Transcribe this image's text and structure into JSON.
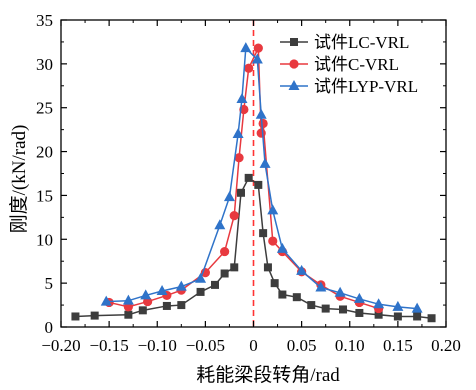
{
  "chart_data": {
    "type": "line",
    "title": "",
    "xlabel": "耗能梁段转角/rad",
    "ylabel": "刚度/(kN/rad)",
    "xlim": [
      -0.2,
      0.2
    ],
    "ylim": [
      0,
      35
    ],
    "xticks": [
      -0.2,
      -0.15,
      -0.1,
      -0.05,
      0,
      0.05,
      0.1,
      0.15,
      0.2
    ],
    "xtick_labels": [
      "−0.20",
      "−0.15",
      "−0.10",
      "−0.05",
      "0",
      "0.05",
      "0.10",
      "0.15",
      "0.20"
    ],
    "yticks": [
      0,
      5,
      10,
      15,
      20,
      25,
      30,
      35
    ],
    "ytick_labels": [
      "0",
      "5",
      "10",
      "15",
      "20",
      "25",
      "30",
      "35"
    ],
    "grid": false,
    "legend_position": "top-right",
    "reference_line": {
      "x": 0,
      "style": "dashed",
      "color": "#ff3333"
    },
    "series": [
      {
        "name": "试件LC-VRL",
        "color": "#3d3d3d",
        "marker": "square",
        "x": [
          -0.185,
          -0.165,
          -0.13,
          -0.115,
          -0.09,
          -0.075,
          -0.055,
          -0.04,
          -0.03,
          -0.02,
          -0.013,
          -0.005,
          0.005,
          0.01,
          0.015,
          0.022,
          0.03,
          0.045,
          0.06,
          0.075,
          0.093,
          0.11,
          0.13,
          0.15,
          0.17,
          0.185
        ],
        "y": [
          1.2,
          1.3,
          1.4,
          1.9,
          2.4,
          2.5,
          4.0,
          4.8,
          6.1,
          6.8,
          15.3,
          17.0,
          16.2,
          10.7,
          6.8,
          5.0,
          3.7,
          3.4,
          2.5,
          2.1,
          2.0,
          1.6,
          1.4,
          1.2,
          1.2,
          1.0
        ]
      },
      {
        "name": "试件C-VRL",
        "color": "#e8393f",
        "marker": "circle",
        "x": [
          -0.15,
          -0.13,
          -0.11,
          -0.09,
          -0.075,
          -0.05,
          -0.03,
          -0.02,
          -0.015,
          -0.01,
          -0.005,
          0.005,
          0.008,
          0.01,
          0.02,
          0.03,
          0.05,
          0.07,
          0.09,
          0.11,
          0.13
        ],
        "y": [
          2.8,
          2.3,
          2.9,
          3.6,
          4.2,
          6.2,
          8.6,
          12.7,
          19.3,
          24.8,
          29.5,
          31.8,
          22.1,
          23.2,
          9.8,
          8.6,
          6.3,
          4.8,
          3.5,
          2.8,
          2.1
        ]
      },
      {
        "name": "试件LYP-VRL",
        "color": "#2f73c9",
        "marker": "triangle",
        "x": [
          -0.153,
          -0.13,
          -0.112,
          -0.095,
          -0.075,
          -0.055,
          -0.035,
          -0.025,
          -0.016,
          -0.012,
          -0.008,
          0.004,
          0.008,
          0.012,
          0.02,
          0.03,
          0.05,
          0.07,
          0.09,
          0.11,
          0.13,
          0.15,
          0.17
        ],
        "y": [
          2.9,
          3.0,
          3.6,
          4.1,
          4.6,
          5.5,
          11.6,
          14.8,
          22.0,
          26.0,
          31.8,
          30.5,
          24.2,
          18.6,
          13.3,
          8.9,
          6.4,
          4.5,
          3.9,
          3.2,
          2.6,
          2.3,
          2.1
        ]
      }
    ]
  }
}
